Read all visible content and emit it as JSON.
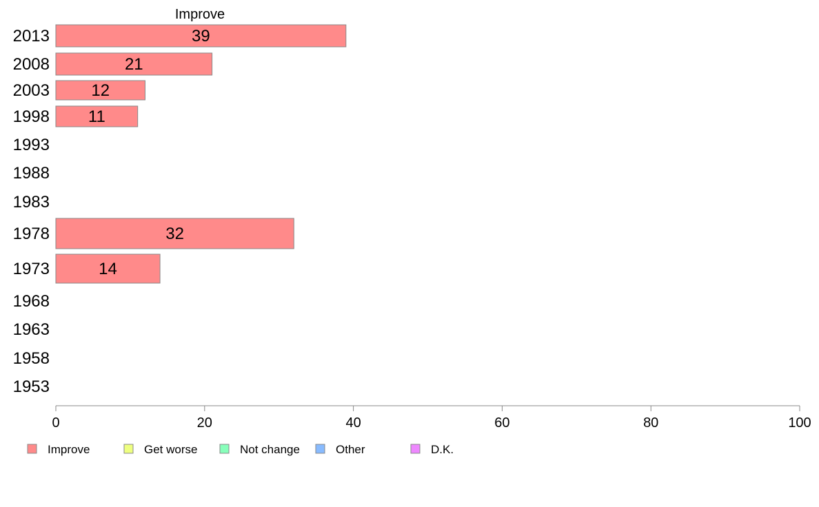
{
  "chart_data": {
    "type": "bar",
    "orientation": "horizontal",
    "title": "Improve",
    "categories": [
      "2013",
      "2008",
      "2003",
      "1998",
      "1993",
      "1988",
      "1983",
      "1978",
      "1973",
      "1968",
      "1963",
      "1958",
      "1953"
    ],
    "series": [
      {
        "name": "Improve",
        "color": "#ff8a8a",
        "values": [
          39,
          21,
          12,
          11,
          null,
          null,
          null,
          32,
          14,
          null,
          null,
          null,
          null
        ],
        "value_labels": [
          "39",
          "21",
          "12",
          "11",
          "",
          "",
          "",
          "32",
          "14",
          "",
          "",
          "",
          ""
        ]
      }
    ],
    "xlim": [
      0,
      100
    ],
    "xticks": [
      0,
      20,
      40,
      60,
      80,
      100
    ],
    "grid": false,
    "legend_position": "bottom-left",
    "legend": [
      {
        "label": "Improve",
        "color": "#ff8a8a"
      },
      {
        "label": "Get worse",
        "color": "#eeff80"
      },
      {
        "label": "Not change",
        "color": "#88ffbb"
      },
      {
        "label": "Other",
        "color": "#88bbff"
      },
      {
        "label": "D.K.",
        "color": "#ee88ff"
      }
    ]
  }
}
